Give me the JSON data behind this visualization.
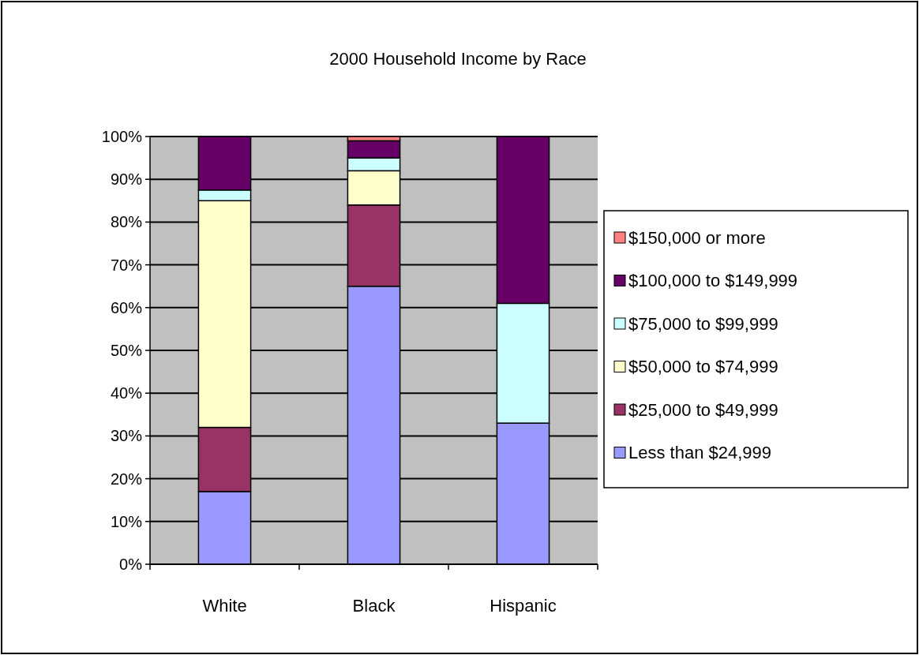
{
  "chart_data": {
    "type": "bar",
    "stacked": true,
    "title": "2000 Household Income by Race",
    "categories": [
      "White",
      "Black",
      "Hispanic"
    ],
    "series": [
      {
        "name": "Less than $24,999",
        "color": "#9999ff",
        "values": [
          17,
          65,
          33
        ]
      },
      {
        "name": "$25,000 to $49,999",
        "color": "#993366",
        "values": [
          15,
          19,
          0
        ]
      },
      {
        "name": "$50,000 to $74,999",
        "color": "#ffffcc",
        "values": [
          53,
          8,
          0
        ]
      },
      {
        "name": "$75,000 to $99,999",
        "color": "#ccffff",
        "values": [
          2.5,
          3,
          28
        ]
      },
      {
        "name": "$100,000 to $149,999",
        "color": "#660066",
        "values": [
          12.5,
          4,
          39
        ]
      },
      {
        "name": "$150,000 or more",
        "color": "#ff8080",
        "values": [
          0,
          1,
          0
        ]
      }
    ],
    "ylim": [
      0,
      100
    ],
    "yticks": [
      {
        "value": 0,
        "label": "0%"
      },
      {
        "value": 10,
        "label": "10%"
      },
      {
        "value": 20,
        "label": "20%"
      },
      {
        "value": 30,
        "label": "30%"
      },
      {
        "value": 40,
        "label": "40%"
      },
      {
        "value": 50,
        "label": "50%"
      },
      {
        "value": 60,
        "label": "60%"
      },
      {
        "value": 70,
        "label": "70%"
      },
      {
        "value": 80,
        "label": "80%"
      },
      {
        "value": 90,
        "label": "90%"
      },
      {
        "value": 100,
        "label": "100%"
      }
    ],
    "grid": "y",
    "legend": "right"
  }
}
